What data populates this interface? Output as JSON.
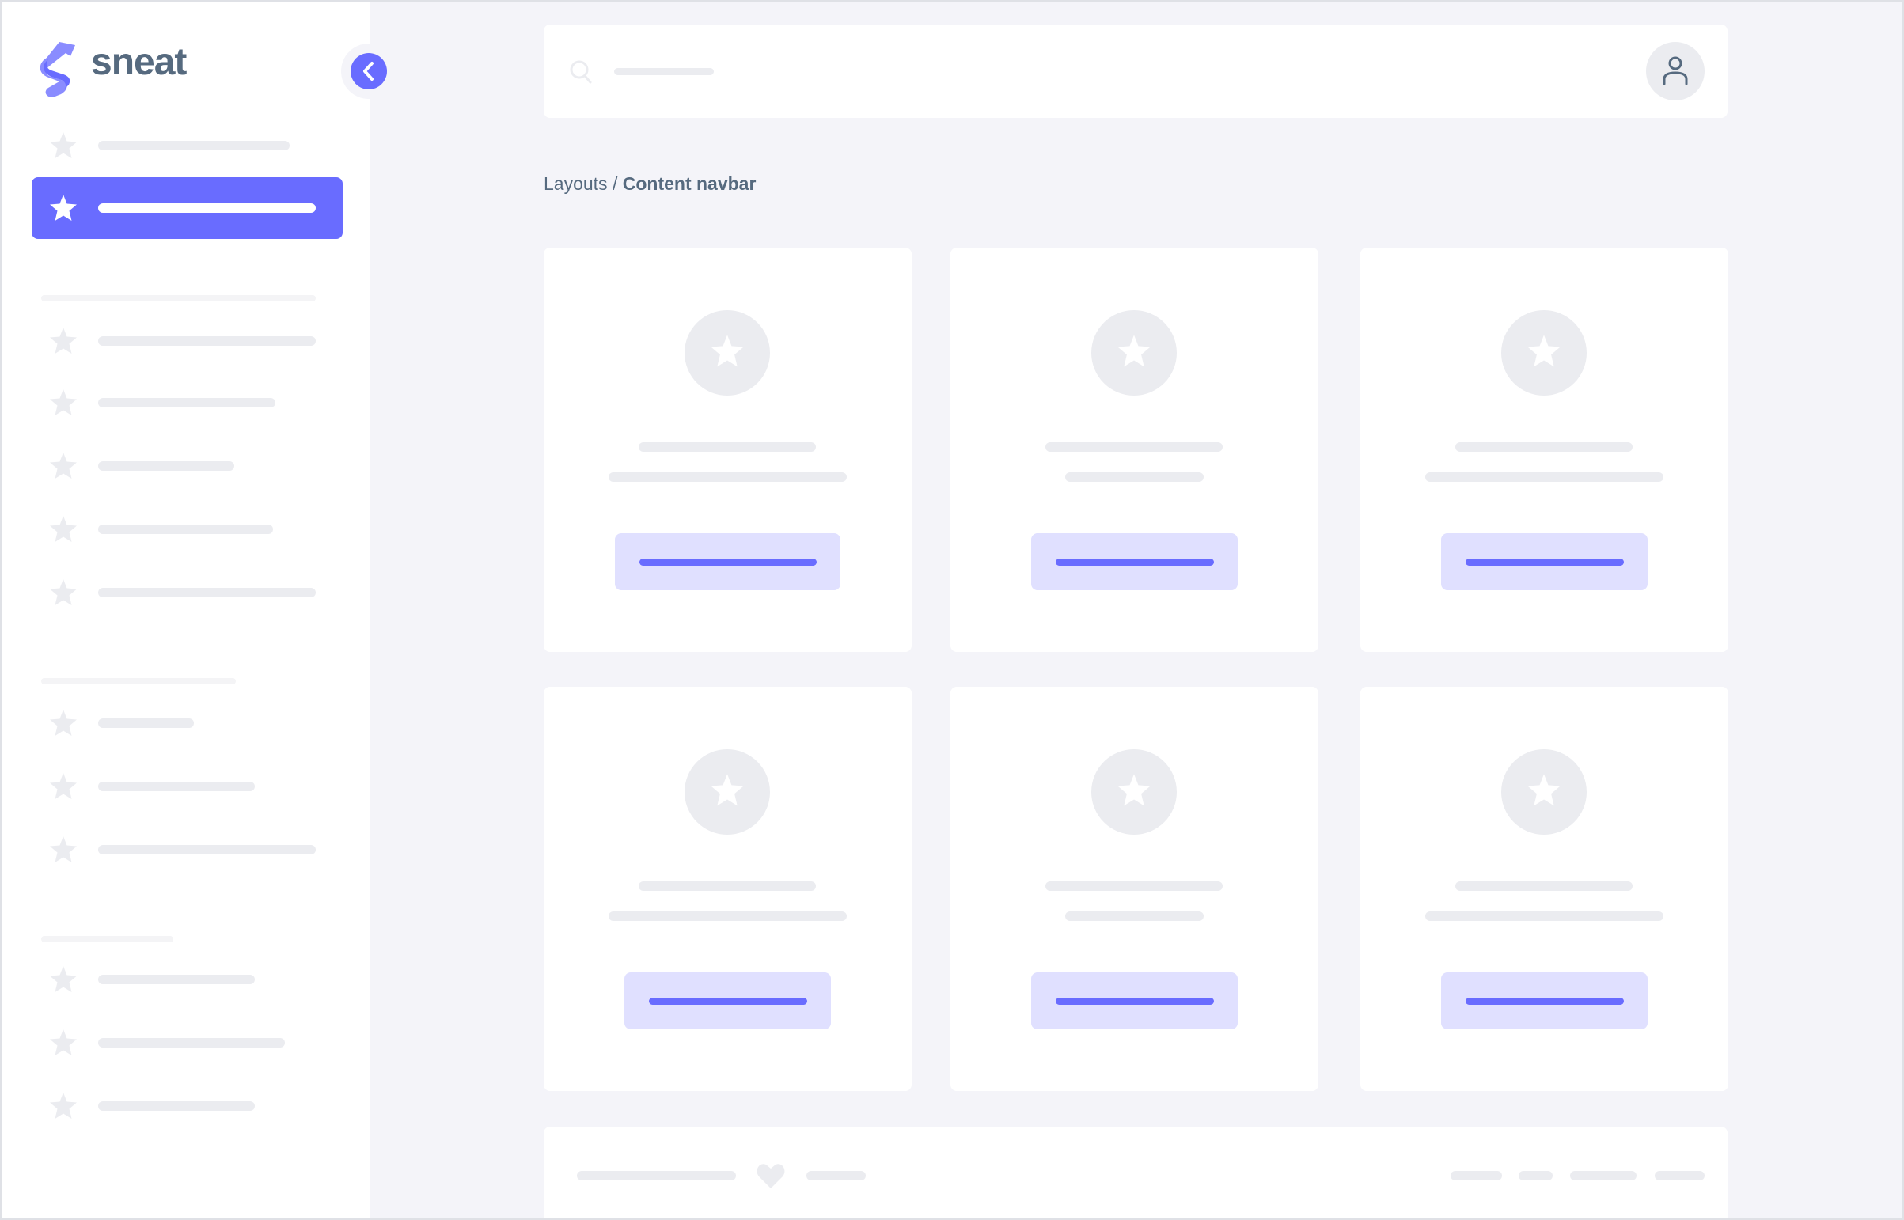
{
  "brand": {
    "name": "sneat",
    "logo_icon": "sneat-s-logo"
  },
  "colors": {
    "primary": "#696cff",
    "primary_light": "#e0e0ff",
    "text": "#566a7f",
    "placeholder": "#ebecf0",
    "background": "#f4f4f9"
  },
  "sidebar": {
    "collapse_icon": "chevron-left-icon",
    "item_icon": "star-icon",
    "active_index": 1
  },
  "navbar": {
    "search_icon": "search-icon",
    "user_icon": "user-icon"
  },
  "breadcrumb": {
    "parent": "Layouts",
    "separator": " / ",
    "current": "Content navbar"
  },
  "footer": {
    "icon": "heart-icon"
  }
}
